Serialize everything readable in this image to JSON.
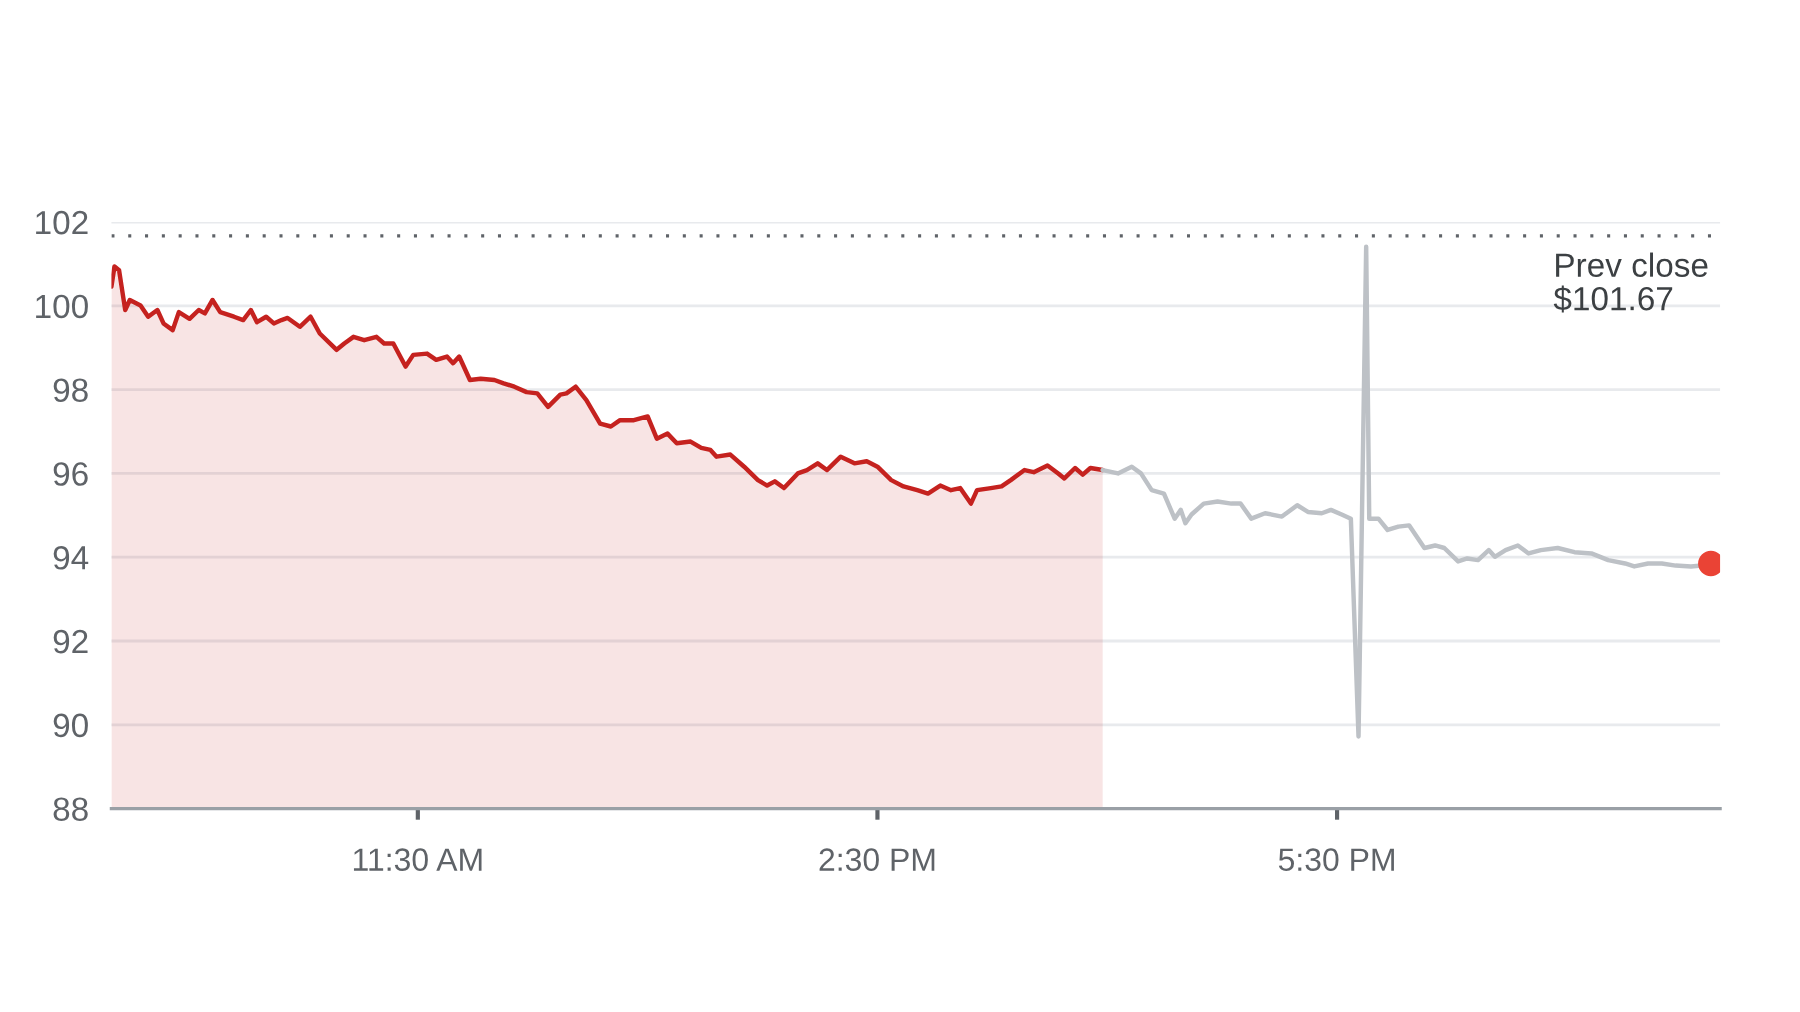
{
  "chart_data": {
    "type": "line",
    "xlim": [
      9.5,
      20
    ],
    "xticks": [
      {
        "value": 11.5,
        "label": "11:30 AM"
      },
      {
        "value": 14.5,
        "label": "2:30 PM"
      },
      {
        "value": 17.5,
        "label": "5:30 PM"
      }
    ],
    "ylim": [
      88,
      102
    ],
    "yticks": [
      88,
      90,
      92,
      94,
      96,
      98,
      100,
      102
    ],
    "grid": "y",
    "ref_lines": [
      {
        "axis": "y",
        "value": 101.67,
        "label": "Prev close\n$101.67",
        "color": "#5f6368",
        "line_style": "dotted"
      }
    ],
    "series": [
      {
        "type": "area",
        "color": "#c5221f",
        "x": [
          9.5,
          9.52,
          9.55,
          9.59,
          9.62,
          9.69,
          9.74,
          9.8,
          9.84,
          9.9,
          9.94,
          10.01,
          10.07,
          10.11,
          10.16,
          10.21,
          10.3,
          10.36,
          10.41,
          10.45,
          10.51,
          10.56,
          10.61,
          10.65,
          10.73,
          10.8,
          10.86,
          10.97,
          11.02,
          11.08,
          11.15,
          11.23,
          11.28,
          11.34,
          11.42,
          11.47,
          11.56,
          11.62,
          11.69,
          11.73,
          11.77,
          11.84,
          11.91,
          12.0,
          12.06,
          12.13,
          12.21,
          12.28,
          12.35,
          12.43,
          12.47,
          12.53,
          12.6,
          12.69,
          12.76,
          12.82,
          12.91,
          13.0,
          13.06,
          13.13,
          13.19,
          13.28,
          13.35,
          13.41,
          13.45,
          13.54,
          13.63,
          13.72,
          13.78,
          13.83,
          13.89,
          13.98,
          14.04,
          14.11,
          14.17,
          14.26,
          14.35,
          14.43,
          14.5,
          14.59,
          14.67,
          14.76,
          14.83,
          14.91,
          14.98,
          15.04,
          15.11,
          15.15,
          15.24,
          15.31,
          15.37,
          15.46,
          15.52,
          15.61,
          15.68,
          15.72,
          15.79,
          15.84,
          15.89,
          15.97
        ],
        "values": [
          100.46,
          100.94,
          100.85,
          99.9,
          100.14,
          100.01,
          99.74,
          99.9,
          99.58,
          99.42,
          99.85,
          99.69,
          99.9,
          99.82,
          100.14,
          99.85,
          99.74,
          99.66,
          99.9,
          99.61,
          99.74,
          99.58,
          99.66,
          99.71,
          99.5,
          99.74,
          99.34,
          98.95,
          99.1,
          99.26,
          99.18,
          99.26,
          99.1,
          99.1,
          98.55,
          98.83,
          98.86,
          98.71,
          98.79,
          98.63,
          98.79,
          98.23,
          98.26,
          98.23,
          98.15,
          98.07,
          97.94,
          97.91,
          97.59,
          97.88,
          97.91,
          98.07,
          97.75,
          97.19,
          97.12,
          97.27,
          97.27,
          97.36,
          96.83,
          96.95,
          96.72,
          96.76,
          96.61,
          96.56,
          96.4,
          96.45,
          96.16,
          95.84,
          95.71,
          95.81,
          95.65,
          96.0,
          96.08,
          96.24,
          96.08,
          96.4,
          96.24,
          96.29,
          96.16,
          95.84,
          95.69,
          95.6,
          95.52,
          95.71,
          95.6,
          95.65,
          95.28,
          95.6,
          95.65,
          95.69,
          95.84,
          96.08,
          96.03,
          96.19,
          96.0,
          95.88,
          96.13,
          95.97,
          96.13,
          96.08
        ]
      },
      {
        "color": "#bdc1c6",
        "x": [
          15.97,
          16.07,
          16.16,
          16.22,
          16.29,
          16.37,
          16.44,
          16.48,
          16.51,
          16.55,
          16.63,
          16.72,
          16.81,
          16.87,
          16.94,
          17.03,
          17.14,
          17.24,
          17.31,
          17.4,
          17.46,
          17.53,
          17.59,
          17.64,
          17.69,
          17.71,
          17.77,
          17.83,
          17.9,
          17.97,
          18.07,
          18.14,
          18.2,
          18.29,
          18.35,
          18.42,
          18.49,
          18.53,
          18.6,
          18.68,
          18.75,
          18.83,
          18.94,
          19.05,
          19.16,
          19.27,
          19.38,
          19.44,
          19.53,
          19.62,
          19.71,
          19.81,
          19.88,
          19.94
        ],
        "values": [
          96.08,
          96.0,
          96.16,
          96.0,
          95.6,
          95.52,
          94.92,
          95.13,
          94.81,
          95.02,
          95.28,
          95.33,
          95.28,
          95.28,
          94.92,
          95.05,
          94.97,
          95.24,
          95.08,
          95.05,
          95.13,
          95.02,
          94.92,
          89.72,
          101.41,
          94.92,
          94.92,
          94.65,
          94.73,
          94.76,
          94.22,
          94.28,
          94.22,
          93.9,
          93.97,
          93.93,
          94.17,
          94.01,
          94.17,
          94.28,
          94.09,
          94.17,
          94.22,
          94.12,
          94.09,
          93.93,
          93.85,
          93.78,
          93.85,
          93.85,
          93.8,
          93.78,
          93.8,
          93.85
        ]
      },
      {
        "type": "scatter",
        "color": "#ea4335",
        "marker": "circle",
        "x": [
          19.94
        ],
        "values": [
          93.85
        ]
      }
    ]
  }
}
